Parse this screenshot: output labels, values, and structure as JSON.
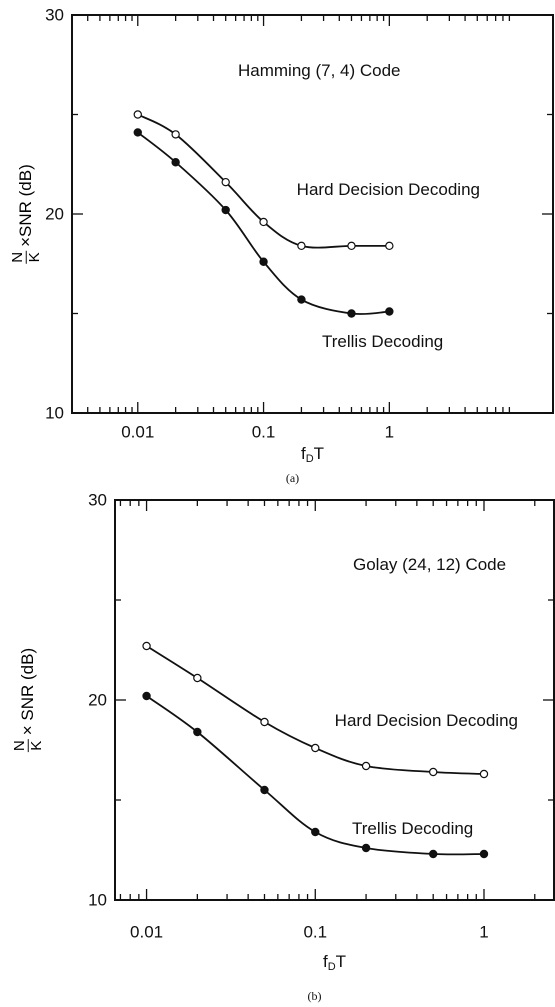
{
  "chart_data": [
    {
      "type": "line",
      "title": "Hamming (7, 4) Code",
      "xlabel": {
        "main": "f",
        "sub": "D",
        "rest": "T"
      },
      "ylabel": {
        "numerator": "N",
        "denominator": "K",
        "rest": "×SNR (dB)"
      },
      "caption": "(a)",
      "xscale": "log",
      "x": [
        0.01,
        0.02,
        0.05,
        0.1,
        0.2,
        0.5,
        1
      ],
      "series": [
        {
          "name": "Hard Decision Decoding",
          "color": "#111111",
          "marker": "open",
          "values": [
            25.0,
            24.0,
            21.6,
            19.6,
            18.4,
            18.4,
            18.4
          ]
        },
        {
          "name": "Trellis Decoding",
          "color": "#111111",
          "marker": "filled",
          "values": [
            24.1,
            22.6,
            20.2,
            17.6,
            15.7,
            15.0,
            15.1
          ]
        }
      ],
      "xlim": [
        0.003,
        20
      ],
      "ylim": [
        10,
        30
      ],
      "xticks": [
        0.01,
        0.1,
        1
      ],
      "yticks": [
        10,
        20,
        30
      ],
      "xminorticks": [
        0.004,
        0.005,
        0.006,
        0.007,
        0.008,
        0.009,
        0.02,
        0.03,
        0.04,
        0.05,
        0.06,
        0.07,
        0.08,
        0.09,
        0.2,
        0.3,
        0.4,
        0.5,
        0.6,
        0.7,
        0.8,
        0.9,
        2,
        3,
        4,
        5,
        6,
        7,
        8,
        9
      ],
      "yminorticks": [
        15,
        25
      ]
    },
    {
      "type": "line",
      "title": "Golay (24, 12) Code",
      "xlabel": {
        "main": "f",
        "sub": "D",
        "rest": "T"
      },
      "ylabel": {
        "numerator": "N",
        "denominator": "K",
        "rest": "× SNR (dB)"
      },
      "caption": "(b)",
      "xscale": "log",
      "x": [
        0.01,
        0.02,
        0.05,
        0.1,
        0.2,
        0.5,
        1
      ],
      "series": [
        {
          "name": "Hard Decision Decoding",
          "color": "#111111",
          "marker": "open",
          "values": [
            22.7,
            21.1,
            18.9,
            17.6,
            16.7,
            16.4,
            16.3
          ]
        },
        {
          "name": "Trellis Decoding",
          "color": "#111111",
          "marker": "filled",
          "values": [
            20.2,
            18.4,
            15.5,
            13.4,
            12.6,
            12.3,
            12.3
          ]
        }
      ],
      "xlim": [
        0.0065,
        2.6
      ],
      "ylim": [
        10,
        30
      ],
      "xticks": [
        0.01,
        0.1,
        1
      ],
      "yticks": [
        10,
        20,
        30
      ],
      "xminorticks": [
        0.007,
        0.008,
        0.009,
        0.02,
        0.03,
        0.04,
        0.05,
        0.06,
        0.07,
        0.08,
        0.09,
        0.2,
        0.3,
        0.4,
        0.5,
        0.6,
        0.7,
        0.8,
        0.9,
        2
      ],
      "yminorticks": [
        15,
        25
      ]
    }
  ]
}
